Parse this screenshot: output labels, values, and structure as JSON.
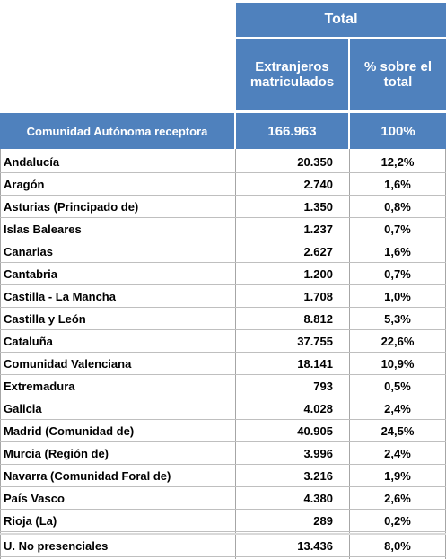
{
  "header": {
    "total": "Total",
    "col1": "Extranjeros matriculados",
    "col2": "% sobre el total"
  },
  "summary": {
    "label": "Comunidad Autónoma receptora",
    "value": "166.963",
    "pct": "100%"
  },
  "rows": [
    {
      "name": "Andalucía",
      "value": "20.350",
      "pct": "12,2%"
    },
    {
      "name": "Aragón",
      "value": "2.740",
      "pct": "1,6%"
    },
    {
      "name": "Asturias (Principado de)",
      "value": "1.350",
      "pct": "0,8%"
    },
    {
      "name": "Islas Baleares",
      "value": "1.237",
      "pct": "0,7%"
    },
    {
      "name": "Canarias",
      "value": "2.627",
      "pct": "1,6%"
    },
    {
      "name": "Cantabria",
      "value": "1.200",
      "pct": "0,7%"
    },
    {
      "name": "Castilla - La Mancha",
      "value": "1.708",
      "pct": "1,0%"
    },
    {
      "name": "Castilla y León",
      "value": "8.812",
      "pct": "5,3%"
    },
    {
      "name": "Cataluña",
      "value": "37.755",
      "pct": "22,6%"
    },
    {
      "name": "Comunidad Valenciana",
      "value": "18.141",
      "pct": "10,9%"
    },
    {
      "name": "Extremadura",
      "value": "793",
      "pct": "0,5%"
    },
    {
      "name": "Galicia",
      "value": "4.028",
      "pct": "2,4%"
    },
    {
      "name": "Madrid (Comunidad de)",
      "value": "40.905",
      "pct": "24,5%"
    },
    {
      "name": "Murcia (Región de)",
      "value": "3.996",
      "pct": "2,4%"
    },
    {
      "name": "Navarra (Comunidad Foral de)",
      "value": "3.216",
      "pct": "1,9%"
    },
    {
      "name": "País Vasco",
      "value": "4.380",
      "pct": "2,6%"
    },
    {
      "name": "Rioja (La)",
      "value": "289",
      "pct": "0,2%"
    }
  ],
  "footer": {
    "name": "U. No presenciales",
    "value": "13.436",
    "pct": "8,0%"
  }
}
